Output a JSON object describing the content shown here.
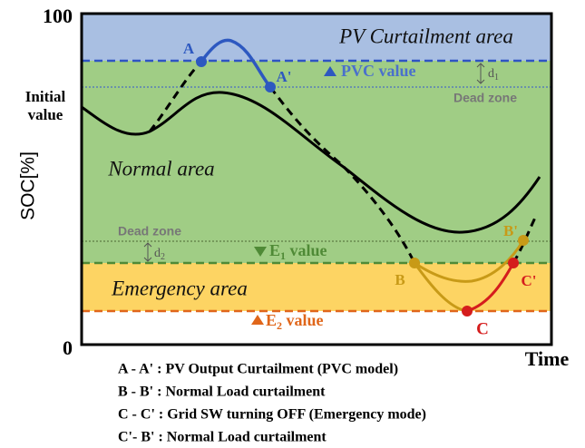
{
  "axis": {
    "y_top": "100",
    "y_bottom": "0",
    "y_label": "SOC[%]",
    "x_label": "Time",
    "initial": [
      "Initial",
      "value"
    ]
  },
  "areas": {
    "pv": "PV Curtailment area",
    "normal": "Normal area",
    "emergency": "Emergency area"
  },
  "levels": {
    "pvc": "PVC value",
    "dead_zone_top": "Dead zone",
    "dead_zone_bottom": "Dead zone",
    "d1": {
      "main": "d",
      "sub": "1"
    },
    "d2": {
      "main": "d",
      "sub": "2"
    },
    "e1": {
      "main": "E",
      "sub": "1",
      "rest": " value"
    },
    "e2": {
      "main": "E",
      "sub": "2",
      "rest": " value"
    }
  },
  "points": {
    "a": "A",
    "a_prime": "A'",
    "b": "B",
    "b_prime": "B'",
    "c": "C",
    "c_prime": "C'"
  },
  "legend": [
    "A - A' : PV Output Curtailment (PVC model)",
    "B - B' : Normal Load curtailment",
    "C - C' : Grid SW turning OFF (Emergency mode)",
    "C'- B' : Normal Load curtailment"
  ]
}
